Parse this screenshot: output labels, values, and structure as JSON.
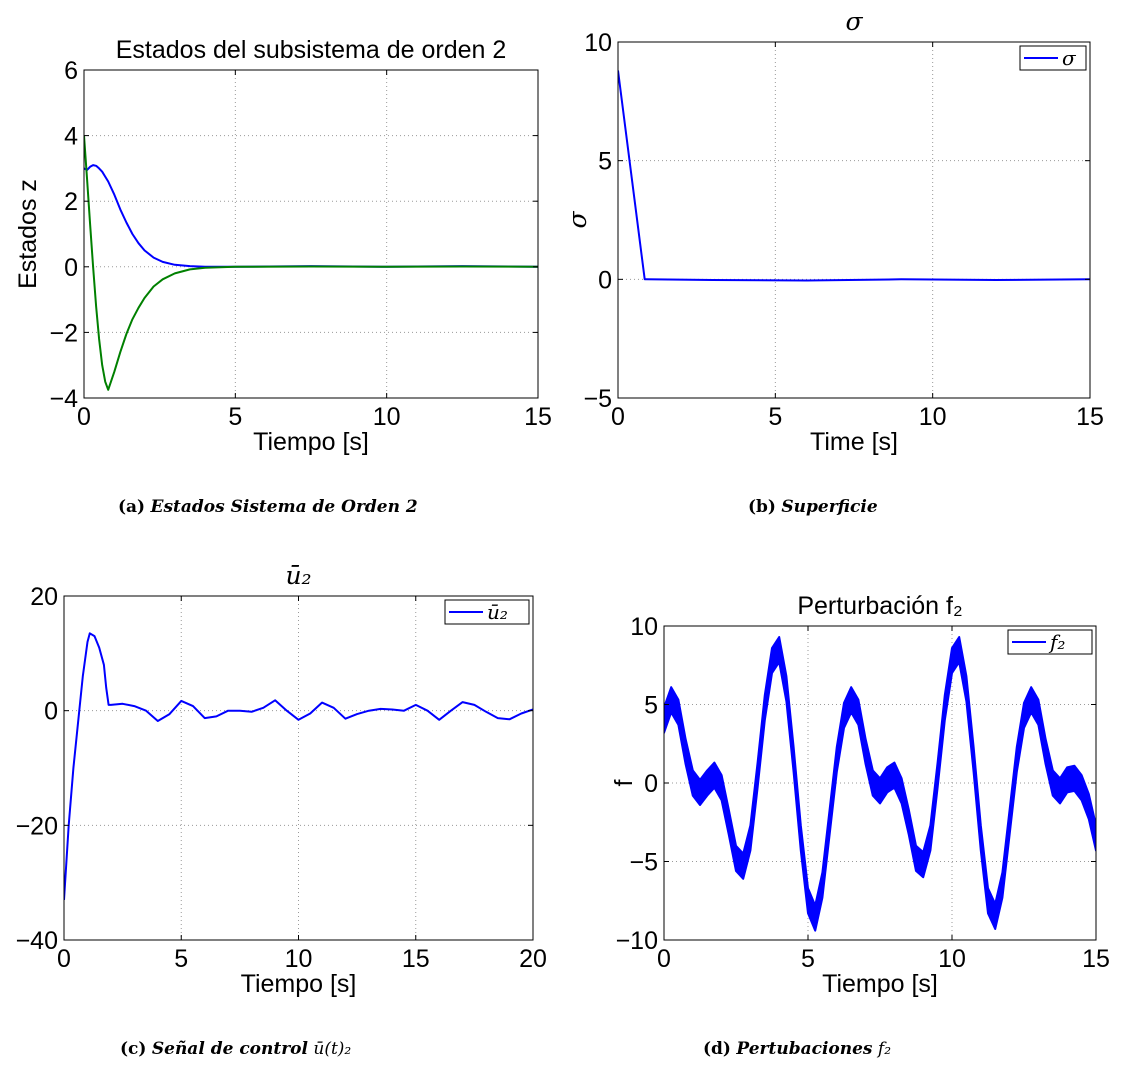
{
  "figure": {
    "panels": [
      {
        "id": "a",
        "title": "Estados del subsistema de orden 2",
        "caption_tag": "(a)",
        "caption_text": "Estados Sistema de Orden 2",
        "caption_math": ""
      },
      {
        "id": "b",
        "title": "σ",
        "caption_tag": "(b)",
        "caption_text": "Superficie",
        "caption_math": ""
      },
      {
        "id": "c",
        "title": "ū₂",
        "caption_tag": "(c)",
        "caption_text": "Señal de control",
        "caption_math": "ū(t)₂"
      },
      {
        "id": "d",
        "title": "Perturbación f₂",
        "caption_tag": "(d)",
        "caption_text": "Pertubaciones",
        "caption_math": "f₂"
      }
    ]
  },
  "chart_data": [
    {
      "type": "line",
      "title": "Estados del subsistema de orden 2",
      "xlabel": "Tiempo [s]",
      "ylabel": "Estados z",
      "xlim": [
        0,
        15
      ],
      "ylim": [
        -4,
        6
      ],
      "xticks": [
        0,
        5,
        10,
        15
      ],
      "yticks": [
        -4,
        -2,
        0,
        2,
        4,
        6
      ],
      "ytick_labels": [
        "−4",
        "−2",
        "0",
        "2",
        "4",
        "6"
      ],
      "grid": true,
      "legend": null,
      "series": [
        {
          "color": "#0000ff",
          "x": [
            0,
            0.1,
            0.2,
            0.3,
            0.4,
            0.5,
            0.6,
            0.7,
            0.8,
            1.0,
            1.2,
            1.4,
            1.6,
            1.8,
            2.0,
            2.3,
            2.6,
            3.0,
            3.5,
            4.0,
            5.0,
            7.5,
            10,
            12.5,
            15
          ],
          "y": [
            3.0,
            2.95,
            3.05,
            3.1,
            3.08,
            3.0,
            2.9,
            2.75,
            2.6,
            2.2,
            1.75,
            1.35,
            1.0,
            0.72,
            0.5,
            0.28,
            0.15,
            0.06,
            0.02,
            0.0,
            0.0,
            0.02,
            0.0,
            0.02,
            0.0
          ]
        },
        {
          "color": "#008000",
          "x": [
            0,
            0.1,
            0.2,
            0.3,
            0.4,
            0.5,
            0.6,
            0.7,
            0.8,
            1.0,
            1.2,
            1.4,
            1.6,
            1.8,
            2.0,
            2.3,
            2.6,
            3.0,
            3.5,
            4.0,
            5.0,
            7.5,
            10,
            12.5,
            15
          ],
          "y": [
            4.0,
            2.7,
            1.3,
            0.0,
            -1.2,
            -2.2,
            -3.0,
            -3.5,
            -3.75,
            -3.2,
            -2.6,
            -2.05,
            -1.6,
            -1.25,
            -0.95,
            -0.6,
            -0.38,
            -0.2,
            -0.08,
            -0.03,
            0.0,
            0.01,
            0.0,
            0.01,
            0.0
          ]
        }
      ]
    },
    {
      "type": "line",
      "title": "σ",
      "xlabel": "Time [s]",
      "ylabel": "σ",
      "xlim": [
        0,
        15
      ],
      "ylim": [
        -5,
        10
      ],
      "xticks": [
        0,
        5,
        10,
        15
      ],
      "yticks": [
        -5,
        0,
        5,
        10
      ],
      "ytick_labels": [
        "−5",
        "0",
        "5",
        "10"
      ],
      "grid": true,
      "legend": "top-right",
      "series": [
        {
          "name": "σ",
          "color": "#0000ff",
          "x": [
            0,
            0.85,
            0.9,
            3,
            6,
            9,
            12,
            15
          ],
          "y": [
            8.8,
            0.0,
            0.0,
            -0.03,
            -0.05,
            0.0,
            -0.03,
            0.0
          ]
        }
      ]
    },
    {
      "type": "line",
      "title": "ū₂",
      "xlabel": "Tiempo [s]",
      "ylabel": "",
      "xlim": [
        0,
        20
      ],
      "ylim": [
        -40,
        20
      ],
      "xticks": [
        0,
        5,
        10,
        15,
        20
      ],
      "yticks": [
        -40,
        -20,
        0,
        20
      ],
      "ytick_labels": [
        "−40",
        "−20",
        "0",
        "20"
      ],
      "grid": true,
      "legend": "top-right",
      "series": [
        {
          "name": "ū₂",
          "color": "#0000ff",
          "x": [
            0,
            0.2,
            0.4,
            0.6,
            0.8,
            1.0,
            1.1,
            1.3,
            1.5,
            1.7,
            1.8,
            1.9,
            2.0,
            2.5,
            3.0,
            3.5,
            4.0,
            4.5,
            5.0,
            5.5,
            6.0,
            6.5,
            7.0,
            7.5,
            8.0,
            8.5,
            9.0,
            9.5,
            10.0,
            10.5,
            11.0,
            11.5,
            12.0,
            12.5,
            13.0,
            13.5,
            14.0,
            14.5,
            15.0,
            15.5,
            16.0,
            16.5,
            17.0,
            17.5,
            18.0,
            18.5,
            19.0,
            19.5,
            20.0
          ],
          "y": [
            -33,
            -20,
            -10,
            -2,
            6,
            12,
            13.5,
            13,
            11,
            8,
            4,
            1,
            1.0,
            1.2,
            0.8,
            0,
            -1.8,
            -0.6,
            1.7,
            0.8,
            -1.3,
            -1.0,
            0.0,
            0.0,
            -0.2,
            0.5,
            1.8,
            0.0,
            -1.6,
            -0.5,
            1.4,
            0.5,
            -1.4,
            -0.6,
            0.0,
            0.3,
            0.2,
            0.0,
            1.0,
            0.0,
            -1.6,
            0.0,
            1.5,
            1.0,
            -0.2,
            -1.3,
            -1.5,
            -0.5,
            0.2
          ]
        }
      ]
    },
    {
      "type": "line",
      "title": "Perturbación f₂",
      "xlabel": "Tiempo [s]",
      "ylabel": "f",
      "xlim": [
        0,
        15
      ],
      "ylim": [
        -10,
        10
      ],
      "xticks": [
        0,
        5,
        10,
        15
      ],
      "yticks": [
        -10,
        -5,
        0,
        5,
        10
      ],
      "ytick_labels": [
        "−10",
        "−5",
        "0",
        "5",
        "10"
      ],
      "grid": true,
      "legend": "top-right",
      "series": [
        {
          "name": "f₂",
          "color": "#0000ff",
          "band_half_width": 0.8,
          "x": [
            0,
            0.25,
            0.5,
            0.75,
            1.0,
            1.25,
            1.5,
            1.75,
            2.0,
            2.25,
            2.5,
            2.75,
            3.0,
            3.25,
            3.5,
            3.75,
            4.0,
            4.25,
            4.5,
            4.75,
            5.0,
            5.25,
            5.5,
            5.75,
            6.0,
            6.25,
            6.5,
            6.75,
            7.0,
            7.25,
            7.5,
            7.75,
            8.0,
            8.25,
            8.5,
            8.75,
            9.0,
            9.25,
            9.5,
            9.75,
            10.0,
            10.25,
            10.5,
            10.75,
            11.0,
            11.25,
            11.5,
            11.75,
            12.0,
            12.25,
            12.5,
            12.75,
            13.0,
            13.25,
            13.5,
            13.75,
            14.0,
            14.25,
            14.5,
            14.75,
            15.0
          ],
          "y": [
            4,
            5.3,
            4.5,
            2.0,
            0.0,
            -0.6,
            0.0,
            0.5,
            -0.3,
            -2.5,
            -4.8,
            -5.3,
            -3.5,
            0.5,
            4.8,
            7.8,
            8.5,
            6.0,
            1.5,
            -3.5,
            -7.5,
            -8.6,
            -6.5,
            -2.5,
            1.5,
            4.3,
            5.3,
            4.5,
            2.0,
            0.0,
            -0.5,
            0.2,
            0.5,
            -0.5,
            -2.5,
            -4.8,
            -5.2,
            -3.5,
            0.5,
            4.8,
            7.8,
            8.5,
            6.0,
            1.5,
            -3.5,
            -7.5,
            -8.5,
            -6.5,
            -2.5,
            1.5,
            4.3,
            5.3,
            4.5,
            2.0,
            0.0,
            -0.5,
            0.2,
            0.3,
            -0.3,
            -1.5,
            -3.5
          ]
        }
      ]
    }
  ]
}
